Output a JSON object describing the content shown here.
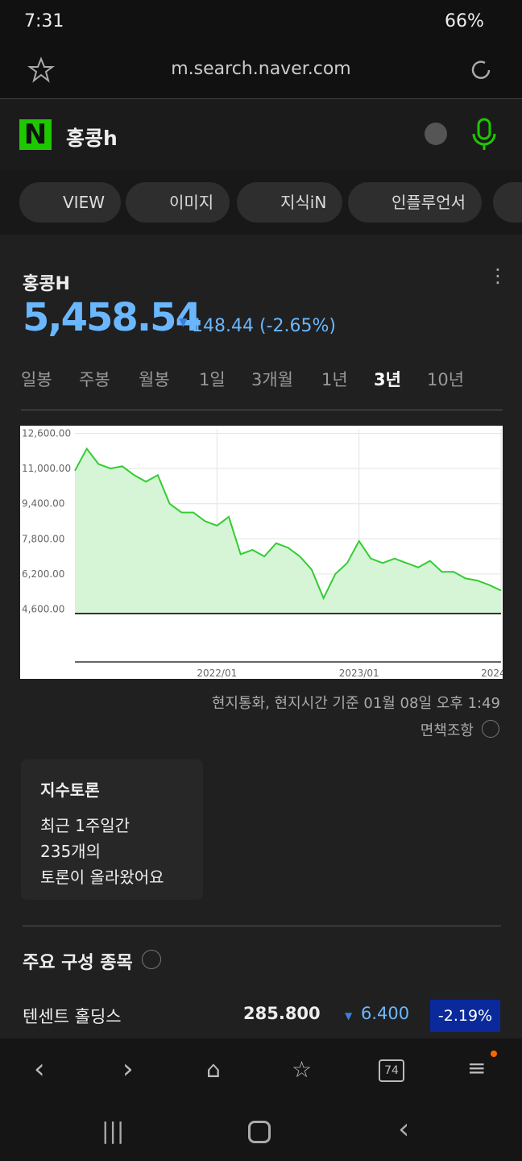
{
  "status": {
    "time": "7:31",
    "battery": "66%"
  },
  "browser": {
    "url": "m.search.naver.com",
    "tab_count": "74"
  },
  "search": {
    "query": "홍콩h"
  },
  "tabs": [
    "VIEW",
    "이미지",
    "지식iN",
    "인플루언서"
  ],
  "stock": {
    "name": "홍콩H",
    "price": "5,458.54",
    "change": "148.44 (-2.65%)",
    "periods": [
      "일봉",
      "주봉",
      "월봉",
      "1일",
      "3개월",
      "1년",
      "3년",
      "10년"
    ],
    "selected_period": 6,
    "note": "현지통화, 현지시간 기준 01월 08일 오후 1:49",
    "disclaimer": "면책조항"
  },
  "chart_data": {
    "type": "area",
    "categories": [
      "2021/01",
      "2021/02",
      "2021/03",
      "2021/04",
      "2021/05",
      "2021/06",
      "2021/07",
      "2021/08",
      "2021/09",
      "2021/10",
      "2021/11",
      "2021/12",
      "2022/01",
      "2022/02",
      "2022/03",
      "2022/04",
      "2022/05",
      "2022/06",
      "2022/07",
      "2022/08",
      "2022/09",
      "2022/10",
      "2022/11",
      "2022/12",
      "2023/01",
      "2023/02",
      "2023/03",
      "2023/04",
      "2023/05",
      "2023/06",
      "2023/07",
      "2023/08",
      "2023/09",
      "2023/10",
      "2023/11",
      "2023/12",
      "2024/01"
    ],
    "values": [
      10900,
      11900,
      11200,
      11000,
      11100,
      10700,
      10400,
      10700,
      9400,
      9000,
      9000,
      8600,
      8400,
      8800,
      7100,
      7300,
      7000,
      7600,
      7400,
      7000,
      6400,
      5100,
      6200,
      6700,
      7700,
      6900,
      6700,
      6900,
      6700,
      6500,
      6800,
      6300,
      6300,
      6000,
      5900,
      5700,
      5450
    ],
    "color": "#33cc33",
    "fill": "#d6f5d6",
    "ylim": [
      4400,
      12800
    ],
    "yticks": [
      {
        "value": 4600,
        "label": "4,600.00"
      },
      {
        "value": 6200,
        "label": "6,200.00"
      },
      {
        "value": 7800,
        "label": "7,800.00"
      },
      {
        "value": 9400,
        "label": "9,400.00"
      },
      {
        "value": 11000,
        "label": "11,000.00"
      },
      {
        "value": 12600,
        "label": "12,600.00"
      }
    ],
    "xticks": [
      "2022/01",
      "2023/01",
      "2024/01"
    ],
    "grid": true
  },
  "discussion": {
    "title": "지수토론",
    "lines": [
      "최근 1주일간",
      "235개의",
      "토론이 올라왔어요"
    ]
  },
  "constituents": {
    "title": "주요 구성 종목",
    "rows": [
      {
        "name": "텐센트 홀딩스",
        "price": "285.800",
        "change": "6.400",
        "percent": "-2.19%"
      }
    ]
  }
}
